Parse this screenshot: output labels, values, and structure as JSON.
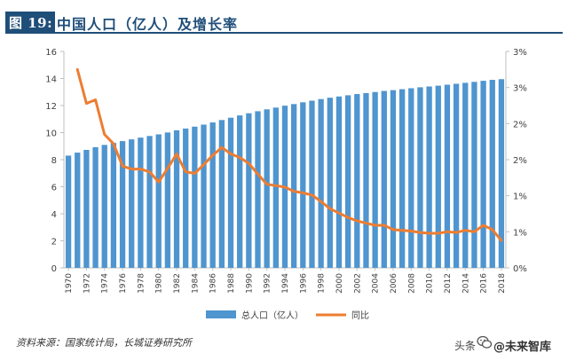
{
  "header": {
    "label": "图 19:",
    "title": "中国人口（亿人）及增长率"
  },
  "chart_data": {
    "type": "bar",
    "title": "中国人口（亿人）及增长率",
    "x": [
      1970,
      1971,
      1972,
      1973,
      1974,
      1975,
      1976,
      1977,
      1978,
      1979,
      1980,
      1981,
      1982,
      1983,
      1984,
      1985,
      1986,
      1987,
      1988,
      1989,
      1990,
      1991,
      1992,
      1993,
      1994,
      1995,
      1996,
      1997,
      1998,
      1999,
      2000,
      2001,
      2002,
      2003,
      2004,
      2005,
      2006,
      2007,
      2008,
      2009,
      2010,
      2011,
      2012,
      2013,
      2014,
      2015,
      2016,
      2017,
      2018
    ],
    "x_tick_labels": [
      "1970",
      "1972",
      "1974",
      "1976",
      "1978",
      "1980",
      "1982",
      "1984",
      "1986",
      "1988",
      "1990",
      "1992",
      "1994",
      "1996",
      "1998",
      "2000",
      "2002",
      "2004",
      "2006",
      "2008",
      "2010",
      "2012",
      "2014",
      "2016",
      "2018"
    ],
    "series": [
      {
        "name": "总人口（亿人）",
        "type": "bar",
        "axis": "left",
        "color": "#4f95cf",
        "values": [
          8.3,
          8.52,
          8.72,
          8.92,
          9.09,
          9.24,
          9.37,
          9.5,
          9.63,
          9.75,
          9.87,
          10.01,
          10.17,
          10.3,
          10.44,
          10.59,
          10.75,
          10.93,
          11.1,
          11.27,
          11.43,
          11.58,
          11.72,
          11.85,
          11.99,
          12.11,
          12.24,
          12.36,
          12.48,
          12.58,
          12.67,
          12.76,
          12.85,
          12.92,
          13.0,
          13.08,
          13.14,
          13.21,
          13.28,
          13.35,
          13.41,
          13.47,
          13.54,
          13.61,
          13.68,
          13.75,
          13.83,
          13.9,
          13.95
        ]
      },
      {
        "name": "同比",
        "type": "line",
        "axis": "right",
        "color": "#ed7d31",
        "values": [
          null,
          2.75,
          2.28,
          2.33,
          1.85,
          1.72,
          1.41,
          1.37,
          1.37,
          1.33,
          1.19,
          1.38,
          1.58,
          1.33,
          1.31,
          1.43,
          1.56,
          1.67,
          1.58,
          1.53,
          1.45,
          1.3,
          1.16,
          1.14,
          1.12,
          1.06,
          1.04,
          1.01,
          0.92,
          0.82,
          0.76,
          0.7,
          0.65,
          0.62,
          0.59,
          0.59,
          0.53,
          0.52,
          0.51,
          0.49,
          0.48,
          0.48,
          0.5,
          0.49,
          0.52,
          0.5,
          0.59,
          0.53,
          0.38
        ]
      }
    ],
    "y_left": {
      "min": 0,
      "max": 16,
      "ticks": [
        "0",
        "2",
        "4",
        "6",
        "8",
        "10",
        "12",
        "14",
        "16"
      ]
    },
    "y_right": {
      "min": 0,
      "max": 3,
      "ticks": [
        "0%",
        "1%",
        "1%",
        "2%",
        "2%",
        "3%",
        "3%"
      ]
    },
    "legend_position": "bottom",
    "grid": false
  },
  "source": "资料来源：国家统计局，长城证券研究所",
  "watermark": {
    "prefix": "头条",
    "icon": "wechat-icon",
    "name": "@未来智库"
  }
}
